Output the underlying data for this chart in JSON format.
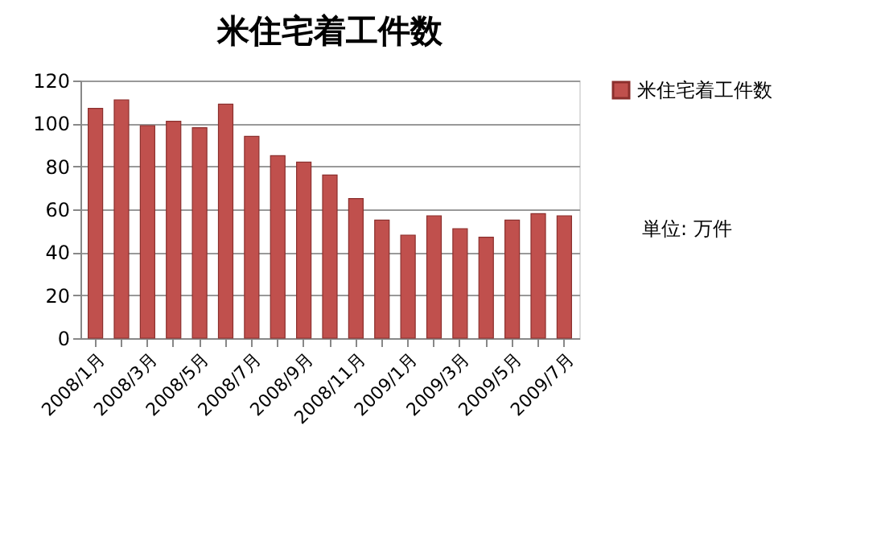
{
  "chart_data": {
    "type": "bar",
    "title": "米住宅着工件数",
    "categories": [
      "2008/1月",
      null,
      "2008/3月",
      null,
      "2008/5月",
      null,
      "2008/7月",
      null,
      "2008/9月",
      null,
      "2008/11月",
      null,
      "2009/1月",
      null,
      "2009/3月",
      null,
      "2009/5月",
      null,
      "2009/7月"
    ],
    "series": [
      {
        "name": "米住宅着工件数",
        "color": "#c0504d",
        "values": [
          107,
          111,
          99,
          101,
          98,
          109,
          94,
          85,
          82,
          76,
          65,
          55,
          48,
          57,
          51,
          47,
          55,
          58,
          57
        ]
      }
    ],
    "annotations": [
      "単位: 万件"
    ],
    "ylim": [
      0,
      120
    ],
    "yticks": [
      0,
      20,
      40,
      60,
      80,
      100,
      120
    ],
    "grid": "y",
    "legend": "right"
  }
}
